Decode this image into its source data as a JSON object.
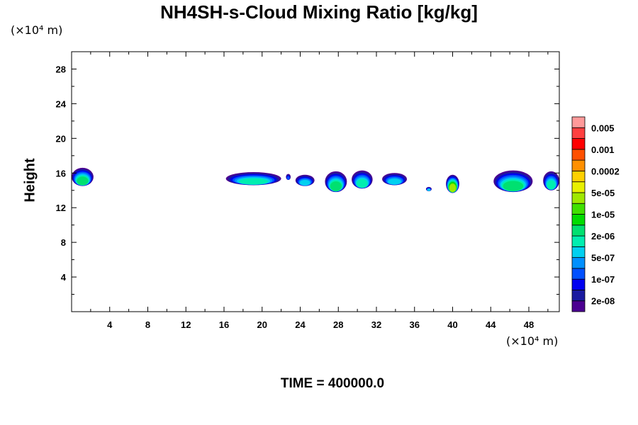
{
  "chart_data": {
    "type": "heatmap",
    "title": "NH4SH-s-Cloud Mixing Ratio [kg/kg]",
    "ylabel": "Height",
    "xlabel": "",
    "x_unit": "(×10⁴ m)",
    "y_unit": "(×10⁴ m)",
    "xlim": [
      0,
      51.2
    ],
    "ylim": [
      0,
      30
    ],
    "x_ticks": [
      4,
      8,
      12,
      16,
      20,
      24,
      28,
      32,
      36,
      40,
      44,
      48
    ],
    "y_ticks": [
      4,
      8,
      12,
      16,
      20,
      24,
      28
    ],
    "colorbar": {
      "labels": [
        "0.005",
        "0.001",
        "0.0002",
        "5e-05",
        "1e-05",
        "2e-06",
        "5e-07",
        "1e-07",
        "2e-08"
      ],
      "colors": [
        "#4b0091",
        "#1a1aa0",
        "#0000f0",
        "#0050ff",
        "#0090ff",
        "#00d0f0",
        "#00eeb0",
        "#00e070",
        "#00dc00",
        "#40e000",
        "#a0e800",
        "#e8f000",
        "#ffd000",
        "#ff9000",
        "#ff5000",
        "#ff0000",
        "#ff4040",
        "#ff9a9a"
      ]
    },
    "clouds": [
      {
        "x0": 0.0,
        "x1": 2.3,
        "base": 14.5,
        "top": 16.6,
        "peak": 0.55
      },
      {
        "x0": 16.2,
        "x1": 22.0,
        "base": 14.6,
        "top": 16.1,
        "peak": 0.5
      },
      {
        "x0": 22.5,
        "x1": 23.0,
        "base": 15.2,
        "top": 15.9,
        "peak": 0.25
      },
      {
        "x0": 23.5,
        "x1": 25.5,
        "base": 14.5,
        "top": 15.8,
        "peak": 0.4
      },
      {
        "x0": 26.6,
        "x1": 28.9,
        "base": 13.8,
        "top": 16.2,
        "peak": 0.6
      },
      {
        "x0": 29.4,
        "x1": 31.6,
        "base": 14.2,
        "top": 16.3,
        "peak": 0.5
      },
      {
        "x0": 32.6,
        "x1": 35.2,
        "base": 14.6,
        "top": 16.0,
        "peak": 0.4
      },
      {
        "x0": 37.2,
        "x1": 37.8,
        "base": 13.9,
        "top": 14.4,
        "peak": 0.45
      },
      {
        "x0": 39.3,
        "x1": 40.7,
        "base": 13.7,
        "top": 15.8,
        "peak": 0.75
      },
      {
        "x0": 44.3,
        "x1": 48.4,
        "base": 13.8,
        "top": 16.3,
        "peak": 0.6
      },
      {
        "x0": 49.5,
        "x1": 51.2,
        "base": 14.0,
        "top": 16.2,
        "peak": 0.5
      }
    ]
  },
  "time_label": "TIME = 400000.0"
}
